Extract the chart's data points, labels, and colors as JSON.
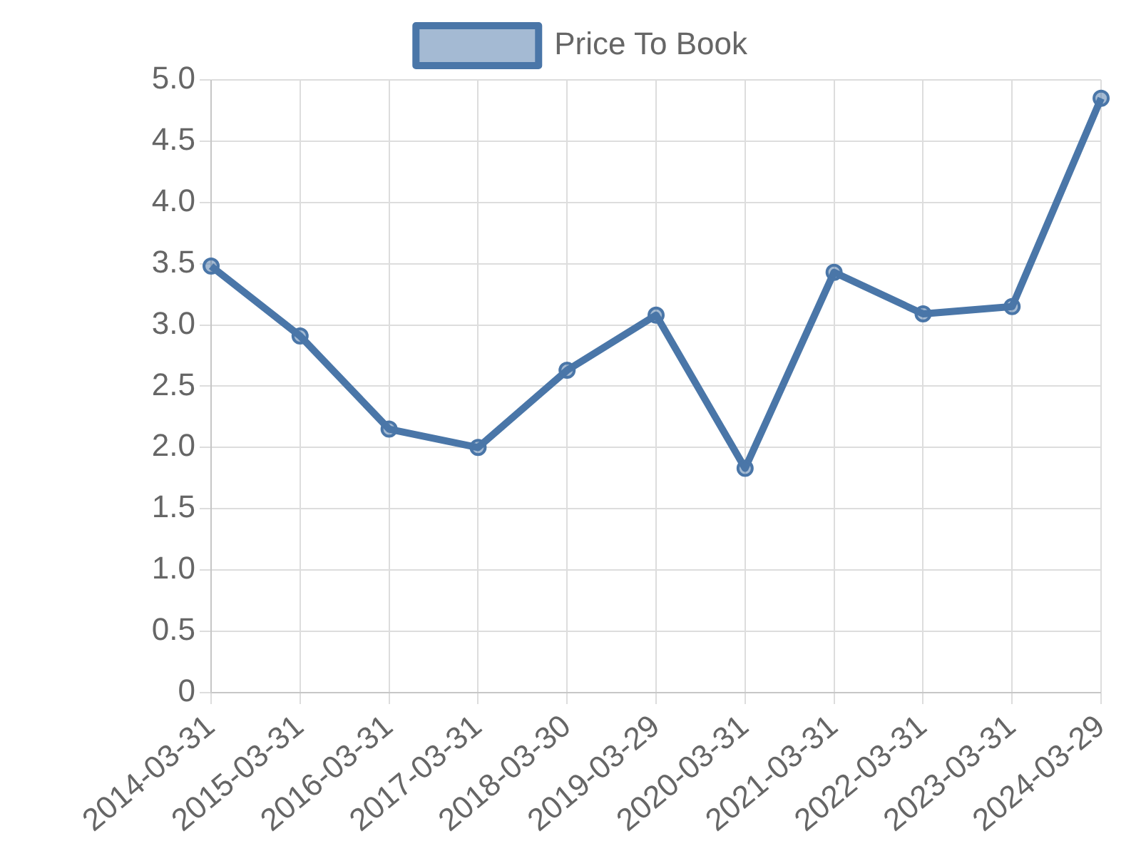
{
  "chart_data": {
    "type": "line",
    "categories": [
      "2014-03-31",
      "2015-03-31",
      "2016-03-31",
      "2017-03-31",
      "2018-03-30",
      "2019-03-29",
      "2020-03-31",
      "2021-03-31",
      "2022-03-31",
      "2023-03-31",
      "2024-03-29"
    ],
    "series": [
      {
        "name": "Price To Book",
        "color": "#4a76a8",
        "values": [
          3.48,
          2.91,
          2.15,
          2.0,
          2.63,
          3.08,
          1.83,
          3.43,
          3.09,
          3.15,
          4.85
        ]
      }
    ],
    "ylim": [
      0,
      5
    ],
    "yticks": [
      0,
      {
        "value": 0.5,
        "label": "0.5"
      },
      {
        "value": 1,
        "label": "1.0"
      },
      {
        "value": 1.5,
        "label": "1.5"
      },
      {
        "value": 2,
        "label": "2.0"
      },
      {
        "value": 2.5,
        "label": "2.5"
      },
      {
        "value": 3,
        "label": "3.0"
      },
      {
        "value": 3.5,
        "label": "3.5"
      },
      {
        "value": 4,
        "label": "4.0"
      },
      {
        "value": 4.5,
        "label": "4.5"
      },
      {
        "value": 5,
        "label": "5.0"
      }
    ],
    "grid": true,
    "legend": "top",
    "marker": "circle",
    "line_style": "solid"
  }
}
